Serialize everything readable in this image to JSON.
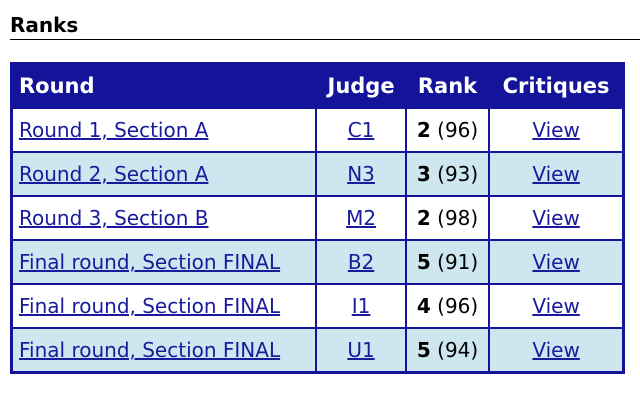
{
  "heading": "Ranks",
  "table": {
    "headers": [
      "Round",
      "Judge",
      "Rank",
      "Critiques"
    ],
    "rows": [
      {
        "round": "Round 1, Section A",
        "judge": "C1",
        "rank": 2,
        "score": "(96)",
        "critique": "View"
      },
      {
        "round": "Round 2, Section A",
        "judge": "N3",
        "rank": 3,
        "score": "(93)",
        "critique": "View"
      },
      {
        "round": "Round 3, Section B",
        "judge": "M2",
        "rank": 2,
        "score": "(98)",
        "critique": "View"
      },
      {
        "round": "Final round, Section FINAL",
        "judge": "B2",
        "rank": 5,
        "score": "(91)",
        "critique": "View"
      },
      {
        "round": "Final round, Section FINAL",
        "judge": "I1",
        "rank": 4,
        "score": "(96)",
        "critique": "View"
      },
      {
        "round": "Final round, Section FINAL",
        "judge": "U1",
        "rank": 5,
        "score": "(94)",
        "critique": "View"
      }
    ]
  }
}
